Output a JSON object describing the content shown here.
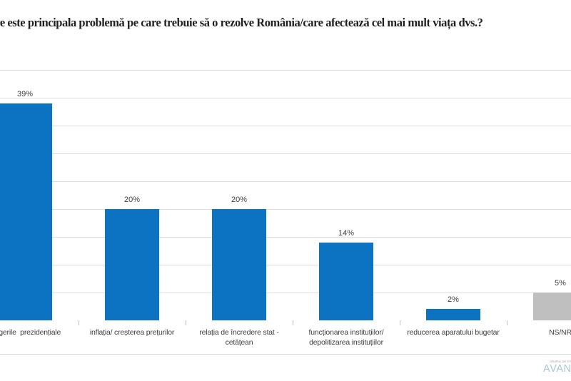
{
  "page": {
    "background": "#ffffff"
  },
  "chart_data": {
    "type": "bar",
    "title": "Care este principala problemă pe care trebuie să o rezolve România/care afectează cel mai mult viața dvs.?",
    "categories": [
      "alegerile  prezidențiale",
      "inflația/ creșterea prețurilor",
      "relația de încredere stat -\ncetățean",
      "funcționarea instituțiilor/\ndepolitizarea instituțiilor",
      "reducerea aparatului bugetar",
      "NS/NR"
    ],
    "values": [
      39,
      20,
      20,
      14,
      2,
      5
    ],
    "data_labels": [
      "39%",
      "20%",
      "20%",
      "14%",
      "2%",
      "5%"
    ],
    "bar_colors": [
      "#0b73c2",
      "#0b73c2",
      "#0b73c2",
      "#0b73c2",
      "#0b73c2",
      "#bfbfbf"
    ],
    "xlabel": "",
    "ylabel": "",
    "ylim": [
      0,
      45
    ],
    "gridline_step": 5,
    "grid": "on",
    "legend": "none"
  },
  "colors": {
    "bar_blue": "#0b73c2",
    "bar_gray": "#bfbfbf",
    "gridline": "#dcdcdc",
    "axis_tick": "#bfbfbf",
    "title_text": "#1f1f1f",
    "label_text": "#404040",
    "divider": "#d9d9d9",
    "logo_blue": "#a6c5d6"
  },
  "footer": {
    "logo_text": "AVANGARDE",
    "logo_tagline": "GRUPUL DE STUDII SOCIO-COMPORTAMENTALE"
  }
}
